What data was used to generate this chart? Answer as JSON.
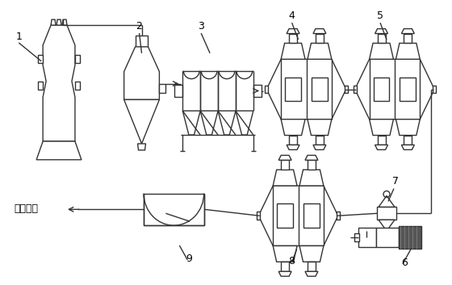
{
  "bg_color": "#ffffff",
  "line_color": "#333333",
  "line_width": 1.0,
  "figsize": [
    5.6,
    3.53
  ],
  "dpi": 100
}
